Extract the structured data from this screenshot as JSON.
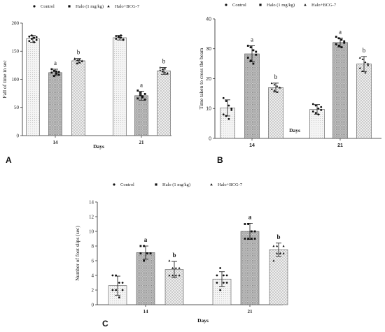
{
  "chart_data": [
    {
      "panel": "A",
      "type": "bar",
      "categories": [
        "14",
        "21"
      ],
      "xlabel": "Days",
      "ylabel": "Fall of time in sec",
      "ylim": [
        0,
        200
      ],
      "yticks": [
        0,
        50,
        100,
        150,
        200
      ],
      "legend_position": "top",
      "series": [
        {
          "name": "Control",
          "values": [
            172,
            174
          ],
          "errors": [
            6,
            4
          ],
          "points": [
            [
              176,
              178,
              174,
              170,
              168,
              172,
              166,
              175
            ],
            [
              177,
              175,
              178,
              171,
              172,
              176,
              174,
              170
            ]
          ],
          "letters": [
            "",
            ""
          ]
        },
        {
          "name": "Halo (1 mg/kg)",
          "values": [
            112,
            71
          ],
          "errors": [
            6,
            8
          ],
          "points": [
            [
              118,
              115,
              110,
              108,
              112,
              106,
              114,
              113
            ],
            [
              80,
              76,
              70,
              64,
              66,
              72,
              68,
              74
            ]
          ],
          "letters": [
            "a",
            "a"
          ]
        },
        {
          "name": "Halo+BCG-7",
          "values": [
            133,
            115
          ],
          "errors": [
            4,
            6
          ],
          "points": [
            [
              137,
              134,
              130,
              132,
              136,
              128,
              135,
              133
            ],
            [
              121,
              118,
              112,
              110,
              116,
              114,
              119,
              111
            ]
          ],
          "letters": [
            "b",
            "b"
          ]
        }
      ]
    },
    {
      "panel": "B",
      "type": "bar",
      "categories": [
        "14",
        "21"
      ],
      "xlabel": "Days",
      "ylabel": "Time taken to cross the beam",
      "ylim": [
        0,
        40
      ],
      "yticks": [
        0,
        10,
        20,
        30,
        40
      ],
      "legend_position": "top",
      "series": [
        {
          "name": "Control",
          "values": [
            10.2,
            9.7
          ],
          "errors": [
            2.7,
            1.6
          ],
          "points": [
            [
              13.5,
              12.5,
              11,
              9.5,
              8,
              7.5,
              6.5,
              10
            ],
            [
              11.5,
              11,
              10,
              9.5,
              9,
              8.5,
              8,
              10.5
            ]
          ],
          "letters": [
            "",
            ""
          ]
        },
        {
          "name": "Halo (1 mg/kg)",
          "values": [
            28.3,
            32.1
          ],
          "errors": [
            2.7,
            1.5
          ],
          "points": [
            [
              31,
              30.5,
              29.5,
              28,
              27,
              26,
              25,
              29
            ],
            [
              34,
              33.5,
              33,
              32,
              31.5,
              31,
              30.5,
              32.5
            ]
          ],
          "letters": [
            "a",
            "a"
          ]
        },
        {
          "name": "Halo+BCG-7",
          "values": [
            17.0,
            24.9
          ],
          "errors": [
            1.5,
            2.5
          ],
          "points": [
            [
              18.5,
              18,
              17.5,
              17,
              16.5,
              16,
              15.5,
              17
            ],
            [
              27,
              26.5,
              25.5,
              24.5,
              23.5,
              22.5,
              22,
              25
            ]
          ],
          "letters": [
            "b",
            "b"
          ]
        }
      ]
    },
    {
      "panel": "C",
      "type": "bar",
      "categories": [
        "14",
        "21"
      ],
      "xlabel": "Days",
      "ylabel": "Number of foot slips (sec)",
      "ylim": [
        0,
        14
      ],
      "yticks": [
        0,
        2,
        4,
        6,
        8,
        10,
        12,
        14
      ],
      "legend_position": "top",
      "series": [
        {
          "name": "Control",
          "values": [
            2.6,
            3.5
          ],
          "errors": [
            1.3,
            1.0
          ],
          "points": [
            [
              4,
              4,
              3,
              2,
              2,
              2,
              1,
              3
            ],
            [
              4,
              5,
              4,
              3,
              3,
              2,
              3,
              4
            ]
          ],
          "letters": [
            "",
            ""
          ]
        },
        {
          "name": "Halo (1 mg/kg)",
          "values": [
            7.1,
            10.0
          ],
          "errors": [
            0.9,
            1.1
          ],
          "points": [
            [
              8,
              8,
              7,
              7,
              7,
              6,
              7,
              7
            ],
            [
              11,
              11,
              10,
              9,
              9,
              9,
              9,
              10
            ]
          ],
          "letters": [
            "a",
            "a"
          ]
        },
        {
          "name": "Halo+BCG-7",
          "values": [
            4.8,
            7.5
          ],
          "errors": [
            1.1,
            0.9
          ],
          "points": [
            [
              6,
              5,
              5,
              4,
              4,
              4,
              4,
              5
            ],
            [
              8,
              8,
              7,
              7,
              6,
              7,
              7,
              8
            ]
          ],
          "letters": [
            "b",
            "b"
          ]
        }
      ]
    }
  ]
}
